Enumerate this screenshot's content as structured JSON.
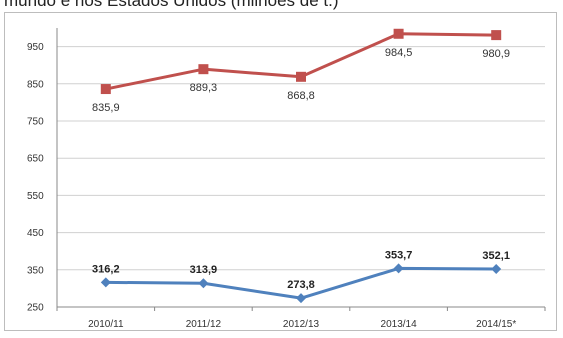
{
  "caption": "mundo e nos Estados Unidos (milhões de t.)",
  "chart_data": {
    "type": "line",
    "categories": [
      "2010/11",
      "2011/12",
      "2012/13",
      "2013/14",
      "2014/15*"
    ],
    "ylim": [
      250,
      1000
    ],
    "yticks": [
      "250",
      "350",
      "450",
      "550",
      "650",
      "750",
      "850",
      "950"
    ],
    "grid": true,
    "legend": "none",
    "series": [
      {
        "values": [
          835.9,
          889.3,
          868.8,
          984.5,
          980.9
        ],
        "labels": [
          "835,9",
          "889,3",
          "868,8",
          "984,5",
          "980,9"
        ],
        "color": "#c0504d",
        "marker": "square"
      },
      {
        "values": [
          316.2,
          313.9,
          273.8,
          353.7,
          352.1
        ],
        "labels": [
          "316,2",
          "313,9",
          "273,8",
          "353,7",
          "352,1"
        ],
        "color": "#4f81bd",
        "marker": "diamond"
      }
    ]
  }
}
